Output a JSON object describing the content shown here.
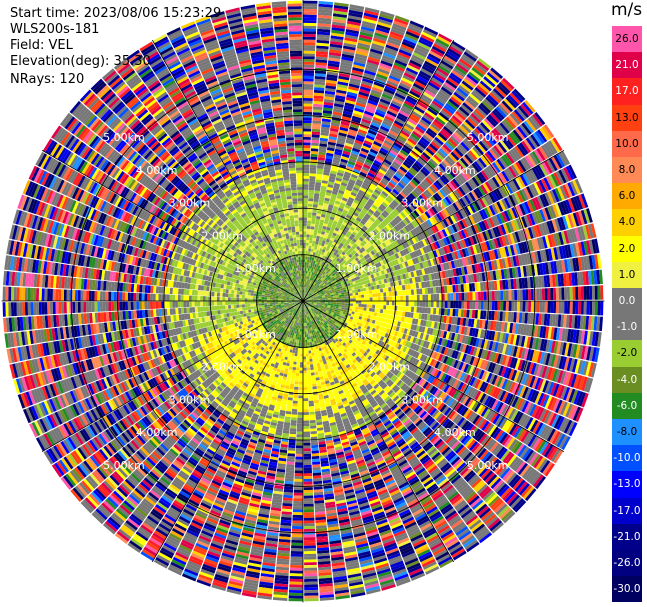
{
  "header": {
    "start_time": "Start time: 2023/08/06 15:23:29",
    "instrument": "WLS200s-181",
    "field": "Field: VEL",
    "elevation": "Elevation(deg): 35.30",
    "nrays": "NRays: 120"
  },
  "chart_data": {
    "type": "heatmap",
    "projection": "polar-ppi",
    "field": "VEL",
    "n_rays": 120,
    "range_rings_km": [
      1.0,
      2.0,
      3.0,
      4.0,
      5.0
    ],
    "ring_labels": [
      "1.00km",
      "2.00km",
      "3.00km",
      "4.00km",
      "5.00km"
    ],
    "max_range_km": 6.5,
    "colorbar": {
      "unit": "m/s",
      "ticks": [
        "26.0",
        "21.0",
        "17.0",
        "13.0",
        "10.0",
        "8.0",
        "6.0",
        "4.0",
        "2.0",
        "1.0",
        "0.0",
        "-1.0",
        "-2.0",
        "-4.0",
        "-6.0",
        "-8.0",
        "-10.0",
        "-13.0",
        "-17.0",
        "-21.0",
        "-26.0",
        "-30.0"
      ],
      "colors": [
        "#ff55aa",
        "#e0004a",
        "#ff2020",
        "#ff4010",
        "#ff6a4a",
        "#ff8a55",
        "#ffaa00",
        "#ffd000",
        "#ffff00",
        "#f0f040",
        "#777777",
        "#777777",
        "#9acd32",
        "#6b8e23",
        "#228b22",
        "#1e90ff",
        "#0050ff",
        "#0000ff",
        "#0000cc",
        "#00008b",
        "#000080",
        "#000060"
      ]
    },
    "ring_structure": [
      {
        "r_max_km": 1.0,
        "values": [
          -4.0,
          -6.0,
          -2.0
        ]
      },
      {
        "r_max_km": 2.4,
        "values": [
          -2.0,
          0.0,
          2.0,
          1.0,
          4.0
        ]
      },
      {
        "r_max_km": 3.0,
        "values": [
          0.0,
          -2.0,
          2.0
        ]
      },
      {
        "r_max_km": 6.5,
        "values": "noise"
      }
    ]
  }
}
